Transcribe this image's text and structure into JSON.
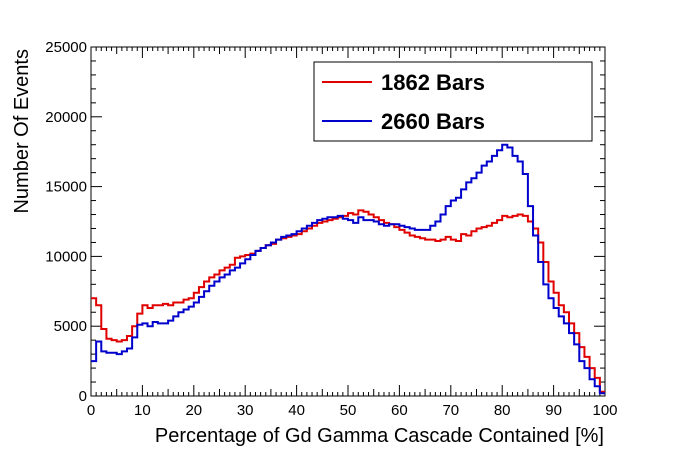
{
  "chart_data": {
    "type": "line",
    "title": "",
    "xlabel": "Percentage of Gd Gamma Cascade Contained [%]",
    "ylabel": "Number Of Events",
    "xlim": [
      0,
      100
    ],
    "ylim": [
      0,
      25000
    ],
    "x_ticks": [
      0,
      10,
      20,
      30,
      40,
      50,
      60,
      70,
      80,
      90,
      100
    ],
    "y_ticks": [
      0,
      5000,
      10000,
      15000,
      20000,
      25000
    ],
    "bin_width": 1,
    "x": [
      0,
      1,
      2,
      3,
      4,
      5,
      6,
      7,
      8,
      9,
      10,
      11,
      12,
      13,
      14,
      15,
      16,
      17,
      18,
      19,
      20,
      21,
      22,
      23,
      24,
      25,
      26,
      27,
      28,
      29,
      30,
      31,
      32,
      33,
      34,
      35,
      36,
      37,
      38,
      39,
      40,
      41,
      42,
      43,
      44,
      45,
      46,
      47,
      48,
      49,
      50,
      51,
      52,
      53,
      54,
      55,
      56,
      57,
      58,
      59,
      60,
      61,
      62,
      63,
      64,
      65,
      66,
      67,
      68,
      69,
      70,
      71,
      72,
      73,
      74,
      75,
      76,
      77,
      78,
      79,
      80,
      81,
      82,
      83,
      84,
      85,
      86,
      87,
      88,
      89,
      90,
      91,
      92,
      93,
      94,
      95,
      96,
      97,
      98,
      99
    ],
    "series": [
      {
        "name": "1862 Bars",
        "color": "#e00000",
        "values": [
          7000,
          6500,
          4800,
          4100,
          4000,
          3900,
          4000,
          4300,
          5000,
          5900,
          6500,
          6300,
          6500,
          6500,
          6600,
          6500,
          6700,
          6700,
          6900,
          7000,
          7400,
          7800,
          8200,
          8500,
          8700,
          9000,
          9200,
          9400,
          9900,
          10000,
          10100,
          10200,
          10400,
          10600,
          10800,
          10900,
          11200,
          11300,
          11400,
          11500,
          11600,
          11800,
          12000,
          12200,
          12400,
          12500,
          12600,
          12700,
          12800,
          12900,
          13100,
          13000,
          13300,
          13200,
          13000,
          12800,
          12600,
          12400,
          12300,
          12100,
          11900,
          11700,
          11500,
          11400,
          11300,
          11200,
          11200,
          11100,
          11200,
          11400,
          11200,
          11100,
          11600,
          11500,
          11800,
          12000,
          12100,
          12200,
          12400,
          12600,
          12900,
          12800,
          12900,
          13000,
          12900,
          12500,
          12000,
          11000,
          9600,
          8200,
          7400,
          6500,
          6000,
          5200,
          4500,
          3500,
          2800,
          2000,
          1300,
          300
        ]
      },
      {
        "name": "2660 Bars",
        "color": "#0000cc",
        "values": [
          2500,
          3900,
          3200,
          3100,
          3100,
          3000,
          3200,
          3400,
          4200,
          5100,
          5200,
          5000,
          5300,
          5200,
          5200,
          5400,
          5700,
          6000,
          6200,
          6400,
          6700,
          7100,
          7500,
          7900,
          8200,
          8500,
          8700,
          9000,
          9200,
          9500,
          9800,
          10100,
          10400,
          10600,
          10800,
          11000,
          11200,
          11400,
          11500,
          11600,
          11800,
          12000,
          12200,
          12400,
          12600,
          12700,
          12800,
          12800,
          12900,
          12700,
          12600,
          12400,
          12800,
          12600,
          12600,
          12500,
          12300,
          12200,
          12300,
          12300,
          12200,
          12100,
          12000,
          11900,
          11900,
          11900,
          12200,
          12500,
          13000,
          13600,
          14000,
          14200,
          14800,
          15300,
          15600,
          16000,
          16500,
          16800,
          17200,
          17600,
          18000,
          17800,
          17200,
          16800,
          15900,
          13600,
          11500,
          9600,
          8000,
          7000,
          6300,
          5700,
          5200,
          4500,
          3700,
          2500,
          2000,
          1200,
          700,
          200
        ]
      }
    ],
    "legend": {
      "position": "top-right",
      "entries": [
        "1862 Bars",
        "2660 Bars"
      ]
    },
    "grid": false
  }
}
